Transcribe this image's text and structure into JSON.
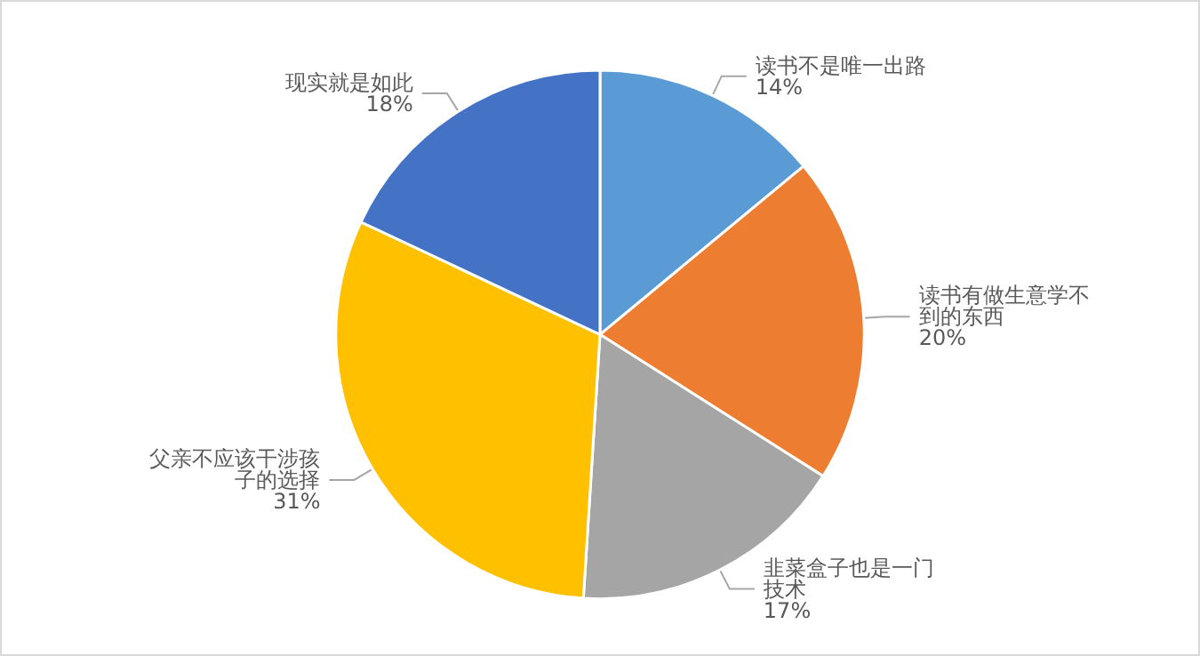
{
  "chart_data": {
    "type": "pie",
    "categories": [
      "读书不是唯一出路",
      "读书有做生意学不到的东西",
      "韭菜盒子也是一门技术",
      "父亲不应该干涉孩子的选择",
      "现实就是如此"
    ],
    "values": [
      14,
      20,
      17,
      31,
      18
    ],
    "colors": [
      "#5b9bd5",
      "#ed7d31",
      "#a5a5a5",
      "#ffc000",
      "#4472c4"
    ],
    "value_labels": [
      "14%",
      "20%",
      "17%",
      "31%",
      "18%"
    ],
    "legend": false
  }
}
